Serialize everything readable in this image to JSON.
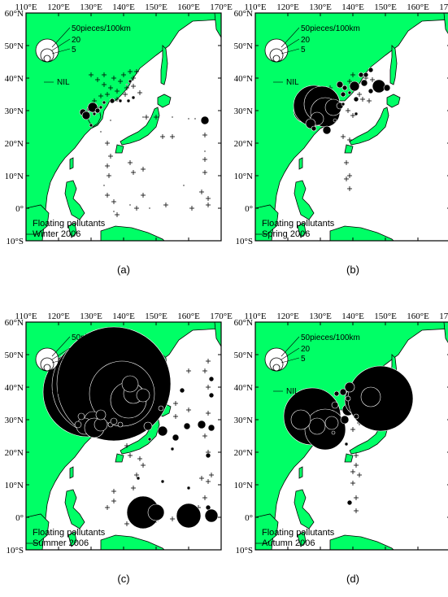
{
  "figure": {
    "panels": [
      {
        "caption": "(a)",
        "title_line1": "Floating pollutants",
        "title_line2": "Winter 2006",
        "nil_label": "NIL",
        "legend": [
          "50pieces/100km",
          "20",
          "5"
        ],
        "circles": [
          [
            127.5,
            29.5,
            4
          ],
          [
            128.5,
            28.5,
            5
          ],
          [
            129.5,
            30.5,
            3
          ],
          [
            130.5,
            31,
            6
          ],
          [
            131,
            29,
            2
          ],
          [
            132,
            30,
            3
          ],
          [
            133,
            31,
            2
          ],
          [
            134,
            32.5,
            2
          ],
          [
            136.5,
            33,
            3
          ],
          [
            139,
            33,
            2
          ],
          [
            141.5,
            33,
            2
          ],
          [
            143,
            34,
            2
          ],
          [
            141,
            38,
            1
          ],
          [
            142,
            39,
            2
          ],
          [
            130,
            25.5,
            2
          ],
          [
            133,
            23.5,
            1
          ],
          [
            136,
            27,
            1
          ],
          [
            146,
            28,
            1
          ],
          [
            155,
            28,
            1
          ],
          [
            160,
            27.5,
            1
          ],
          [
            162,
            27.5,
            1
          ],
          [
            165,
            27,
            5
          ],
          [
            165,
            17.5,
            1
          ],
          [
            158.5,
            7,
            1
          ],
          [
            134,
            7,
            1
          ],
          [
            142,
            1,
            1
          ],
          [
            148,
            0,
            1
          ],
          [
            137,
            -1,
            1
          ]
        ],
        "crosses": [
          [
            130,
            41
          ],
          [
            132,
            39.5
          ],
          [
            134,
            38
          ],
          [
            136,
            37
          ],
          [
            138,
            36
          ],
          [
            139,
            39
          ],
          [
            140,
            41
          ],
          [
            142,
            42
          ],
          [
            143,
            40
          ],
          [
            141,
            37
          ],
          [
            137,
            40
          ],
          [
            135,
            35
          ],
          [
            133,
            34.5
          ],
          [
            131,
            33
          ],
          [
            138,
            33.5
          ],
          [
            140.5,
            35
          ],
          [
            145,
            35.5
          ],
          [
            143,
            37.5
          ],
          [
            144,
            42
          ],
          [
            134,
            41
          ],
          [
            150,
            28
          ],
          [
            147,
            28
          ],
          [
            152,
            22
          ],
          [
            155,
            22
          ],
          [
            142,
            14
          ],
          [
            143,
            11
          ],
          [
            146,
            12
          ],
          [
            135,
            20
          ],
          [
            136,
            16
          ],
          [
            135,
            13
          ],
          [
            135.5,
            10
          ],
          [
            135,
            4
          ],
          [
            137,
            2
          ],
          [
            138,
            -2
          ],
          [
            144,
            0
          ],
          [
            146,
            4
          ],
          [
            153,
            1
          ],
          [
            165,
            22.5
          ],
          [
            165,
            15
          ],
          [
            165,
            11
          ],
          [
            164,
            5
          ],
          [
            166,
            3
          ],
          [
            166,
            1
          ],
          [
            161,
            0
          ]
        ]
      },
      {
        "caption": "(b)",
        "title_line1": "Floating pollutants",
        "title_line2": "Spring 2006",
        "nil_label": "NIL",
        "legend": [
          "50pieces/100km",
          "20",
          "5"
        ],
        "circles": [
          [
            125.5,
            30,
            15
          ],
          [
            128,
            31.5,
            25
          ],
          [
            130.5,
            32,
            22
          ],
          [
            131.5,
            29.5,
            18
          ],
          [
            129,
            27.5,
            8
          ],
          [
            127,
            26,
            6
          ],
          [
            134,
            31,
            10
          ],
          [
            132,
            24,
            5
          ],
          [
            128,
            24.5,
            3
          ],
          [
            136,
            31.5,
            4
          ],
          [
            137,
            35,
            3
          ],
          [
            136,
            38,
            4
          ],
          [
            137.5,
            37,
            3
          ],
          [
            141,
            33.5,
            3
          ],
          [
            140.5,
            37.5,
            6
          ],
          [
            143.5,
            38.5,
            4
          ],
          [
            144,
            41,
            3
          ],
          [
            145.5,
            42.5,
            3
          ],
          [
            145.5,
            36,
            3
          ],
          [
            148,
            37.5,
            8
          ],
          [
            150.5,
            37,
            4
          ],
          [
            142.5,
            41,
            3
          ],
          [
            141,
            29,
            2
          ],
          [
            134.5,
            27,
            2
          ],
          [
            137,
            32,
            2
          ],
          [
            139,
            35.5,
            2
          ]
        ],
        "crosses": [
          [
            139,
            39
          ],
          [
            140,
            41
          ],
          [
            142,
            35
          ],
          [
            144,
            40
          ],
          [
            146,
            39.5
          ],
          [
            143,
            33.5
          ],
          [
            145,
            33
          ],
          [
            138.5,
            30
          ],
          [
            137,
            22
          ],
          [
            139,
            21
          ],
          [
            138,
            14
          ],
          [
            139,
            10
          ],
          [
            138,
            9
          ],
          [
            139,
            6
          ],
          [
            140,
            28.5
          ],
          [
            133,
            37
          ]
        ]
      },
      {
        "caption": "(c)",
        "title_line1": "Floating pollutants",
        "title_line2": "Summer 2006",
        "nil_label": "NIL",
        "legend": [
          "50pieces/100km",
          "20",
          "5"
        ],
        "circles": [
          [
            129,
            38.5,
            55
          ],
          [
            133,
            40.5,
            60
          ],
          [
            137,
            41,
            70
          ],
          [
            139.5,
            38,
            40
          ],
          [
            141.5,
            36,
            22
          ],
          [
            143,
            38,
            12
          ],
          [
            146,
            37.5,
            8
          ],
          [
            142,
            41,
            10
          ],
          [
            130.5,
            30,
            10
          ],
          [
            128,
            28,
            10
          ],
          [
            131,
            27.5,
            12
          ],
          [
            133,
            28.5,
            8
          ],
          [
            133,
            31.5,
            6
          ],
          [
            126,
            28.5,
            4
          ],
          [
            127,
            31,
            4
          ],
          [
            136,
            28.5,
            3
          ],
          [
            137,
            29.5,
            4
          ],
          [
            139,
            28.5,
            3
          ],
          [
            147.5,
            28,
            5
          ],
          [
            152,
            26.5,
            6
          ],
          [
            156,
            24.5,
            4
          ],
          [
            159.5,
            28,
            4
          ],
          [
            164,
            28.5,
            5
          ],
          [
            167,
            27.5,
            4
          ],
          [
            167,
            37.5,
            3
          ],
          [
            167,
            42.5,
            3
          ],
          [
            158,
            39,
            3
          ],
          [
            151.5,
            33.5,
            3
          ],
          [
            148,
            24,
            2
          ],
          [
            155,
            21,
            2
          ],
          [
            166,
            19,
            3
          ],
          [
            166,
            3,
            3
          ],
          [
            146,
            1.5,
            20
          ],
          [
            150,
            1.5,
            10
          ],
          [
            160,
            0.5,
            15
          ],
          [
            167,
            0.5,
            8
          ],
          [
            144.5,
            12,
            2
          ],
          [
            152,
            11,
            2
          ],
          [
            160,
            9,
            2
          ]
        ],
        "crosses": [
          [
            137,
            40
          ],
          [
            142,
            44
          ],
          [
            145,
            42
          ],
          [
            156,
            35
          ],
          [
            160,
            45
          ],
          [
            166,
            48
          ],
          [
            165,
            45
          ],
          [
            166,
            32
          ],
          [
            160,
            33
          ],
          [
            156,
            31
          ],
          [
            150,
            31
          ],
          [
            146,
            33.5
          ],
          [
            141,
            33
          ],
          [
            144,
            26
          ],
          [
            141,
            22
          ],
          [
            142,
            19
          ],
          [
            145,
            18
          ],
          [
            146,
            16
          ],
          [
            144,
            13
          ],
          [
            143,
            9
          ],
          [
            137,
            8
          ],
          [
            137,
            5
          ],
          [
            135,
            3
          ],
          [
            141,
            -2
          ],
          [
            148,
            0.5
          ],
          [
            150,
            -1
          ],
          [
            155,
            -0.5
          ],
          [
            158,
            0.5
          ],
          [
            162,
            0
          ],
          [
            163,
            3
          ],
          [
            165,
            6
          ],
          [
            164,
            12
          ],
          [
            167,
            13
          ],
          [
            166,
            11
          ],
          [
            166,
            20
          ],
          [
            165,
            25
          ],
          [
            166,
            40
          ]
        ]
      },
      {
        "caption": "(d)",
        "title_line1": "Floating pollutants",
        "title_line2": "Autumn 2006",
        "nil_label": "NIL",
        "legend": [
          "50pieces/100km",
          "20",
          "5"
        ],
        "circles": [
          [
            127.5,
            31,
            35
          ],
          [
            131.5,
            27,
            25
          ],
          [
            133.5,
            29,
            8
          ],
          [
            129,
            28,
            10
          ],
          [
            124,
            30,
            12
          ],
          [
            137.5,
            30,
            5
          ],
          [
            138.5,
            33,
            7
          ],
          [
            140.5,
            34.5,
            10
          ],
          [
            142.5,
            36,
            20
          ],
          [
            143.5,
            39,
            14
          ],
          [
            144,
            38,
            16
          ],
          [
            148.5,
            36.5,
            40
          ],
          [
            145.5,
            37,
            12
          ],
          [
            141,
            31,
            3
          ],
          [
            134.5,
            34.5,
            4
          ],
          [
            135,
            38,
            3
          ],
          [
            137,
            38.5,
            4
          ],
          [
            139,
            40,
            6
          ],
          [
            138.5,
            36.5,
            3
          ],
          [
            134,
            26,
            2
          ],
          [
            138,
            22.5,
            2
          ],
          [
            139,
            4.5,
            3
          ]
        ],
        "crosses": [
          [
            141,
            40.5
          ],
          [
            144,
            41
          ],
          [
            142,
            29
          ],
          [
            140,
            27
          ],
          [
            141,
            19
          ],
          [
            141,
            16
          ],
          [
            140,
            14
          ],
          [
            142,
            13
          ],
          [
            140,
            10.5
          ],
          [
            141,
            6
          ],
          [
            141,
            2
          ],
          [
            144,
            42
          ]
        ]
      }
    ]
  }
}
